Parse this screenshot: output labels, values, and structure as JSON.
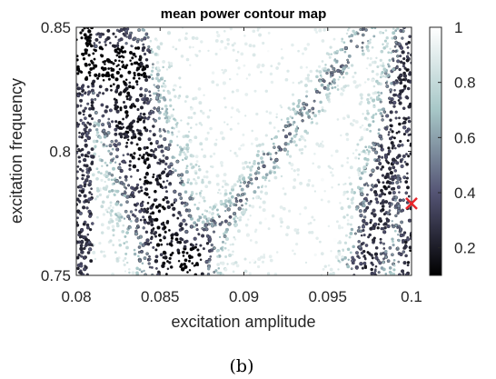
{
  "chart_data": {
    "type": "heatmap",
    "title": "mean power contour map",
    "xlabel": "excitation amplitude",
    "ylabel": "excitation frequency",
    "xlim": [
      0.08,
      0.1
    ],
    "ylim": [
      0.75,
      0.85
    ],
    "xticks": [
      "0.08",
      "0.085",
      "0.09",
      "0.095",
      "0.1"
    ],
    "xtick_values": [
      0.08,
      0.085,
      0.09,
      0.095,
      0.1
    ],
    "yticks": [
      "0.75",
      "0.8",
      "0.85"
    ],
    "ytick_values": [
      0.75,
      0.8,
      0.85
    ],
    "colorbar": {
      "range": [
        0.1,
        1
      ],
      "ticks": [
        "0.2",
        "0.4",
        "0.6",
        "0.8",
        "1"
      ],
      "tick_values": [
        0.2,
        0.4,
        0.6,
        0.8,
        1.0
      ],
      "colormap": "bone",
      "colors": [
        "#000000",
        "#545474",
        "#a7c7c7",
        "#ffffff"
      ]
    },
    "regions": [
      {
        "description": "low-power band along left side",
        "value": 0.2
      },
      {
        "description": "diagonal band of intermediate power",
        "value": 0.6
      },
      {
        "description": "high-power region between bands",
        "value": 1.0
      },
      {
        "description": "low-power band near right edge",
        "value": 0.3
      }
    ],
    "marker": {
      "x": 0.1,
      "y": 0.779,
      "symbol": "x",
      "color": "#e8262b"
    }
  },
  "caption": "(b)"
}
